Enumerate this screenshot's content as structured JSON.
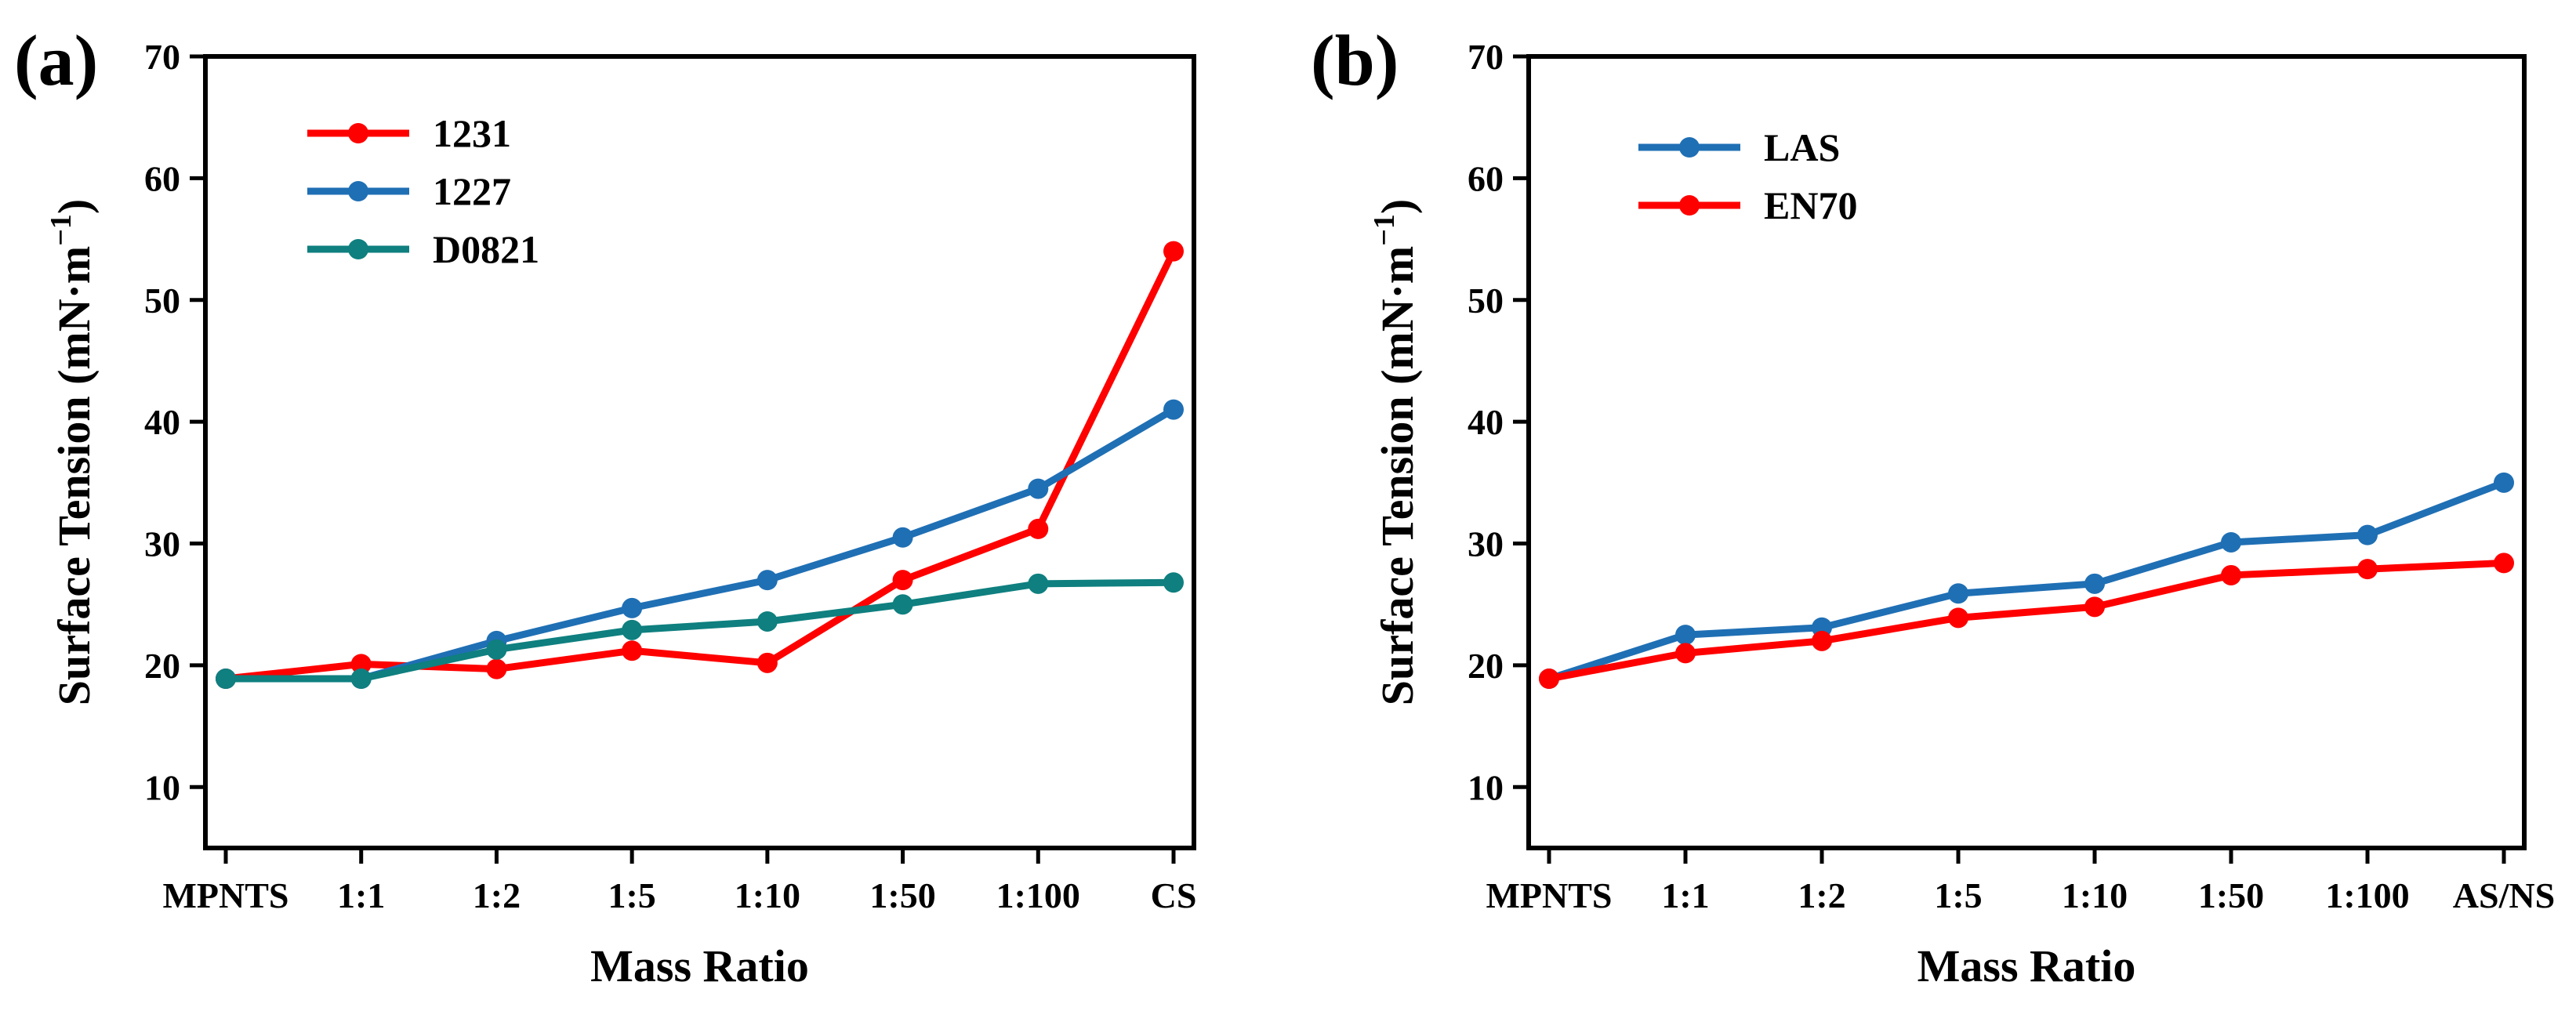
{
  "chart_data": [
    {
      "type": "line",
      "panel_label": "(a)",
      "title": "",
      "xlabel": "Mass Ratio",
      "ylabel_main": "Surface Tension (mN·m",
      "ylabel_sup": "−1",
      "ylabel_close": ")",
      "ylim": [
        5,
        70
      ],
      "yticks": [
        10,
        20,
        30,
        40,
        50,
        60,
        70
      ],
      "categories": [
        "MPNTS",
        "1:1",
        "1:2",
        "1:5",
        "1:10",
        "1:50",
        "1:100",
        "CS"
      ],
      "legend_position": "top-left",
      "grid": false,
      "series": [
        {
          "name": "1231",
          "color": "#ff0000",
          "values": [
            18.9,
            20.1,
            19.7,
            21.2,
            20.2,
            27.0,
            31.2,
            54.0
          ]
        },
        {
          "name": "1227",
          "color": "#1f6fb4",
          "values": [
            18.9,
            18.9,
            22.0,
            24.7,
            27.0,
            30.5,
            34.5,
            41.0
          ]
        },
        {
          "name": "D0821",
          "color": "#0f7f7f",
          "values": [
            18.9,
            18.9,
            21.3,
            22.9,
            23.6,
            25.0,
            26.7,
            26.8
          ]
        }
      ]
    },
    {
      "type": "line",
      "panel_label": "(b)",
      "title": "",
      "xlabel": "Mass Ratio",
      "ylabel_main": "Surface Tension (mN·m",
      "ylabel_sup": "−1",
      "ylabel_close": ")",
      "ylim": [
        5,
        70
      ],
      "yticks": [
        10,
        20,
        30,
        40,
        50,
        60,
        70
      ],
      "categories": [
        "MPNTS",
        "1:1",
        "1:2",
        "1:5",
        "1:10",
        "1:50",
        "1:100",
        "AS/NS"
      ],
      "legend_position": "top-left",
      "grid": false,
      "series": [
        {
          "name": "LAS",
          "color": "#1f6fb4",
          "values": [
            18.9,
            22.5,
            23.1,
            25.9,
            26.7,
            30.1,
            30.7,
            35.0
          ]
        },
        {
          "name": "EN70",
          "color": "#ff0000",
          "values": [
            18.9,
            21.0,
            22.0,
            23.9,
            24.8,
            27.4,
            27.9,
            28.4
          ]
        }
      ]
    }
  ]
}
